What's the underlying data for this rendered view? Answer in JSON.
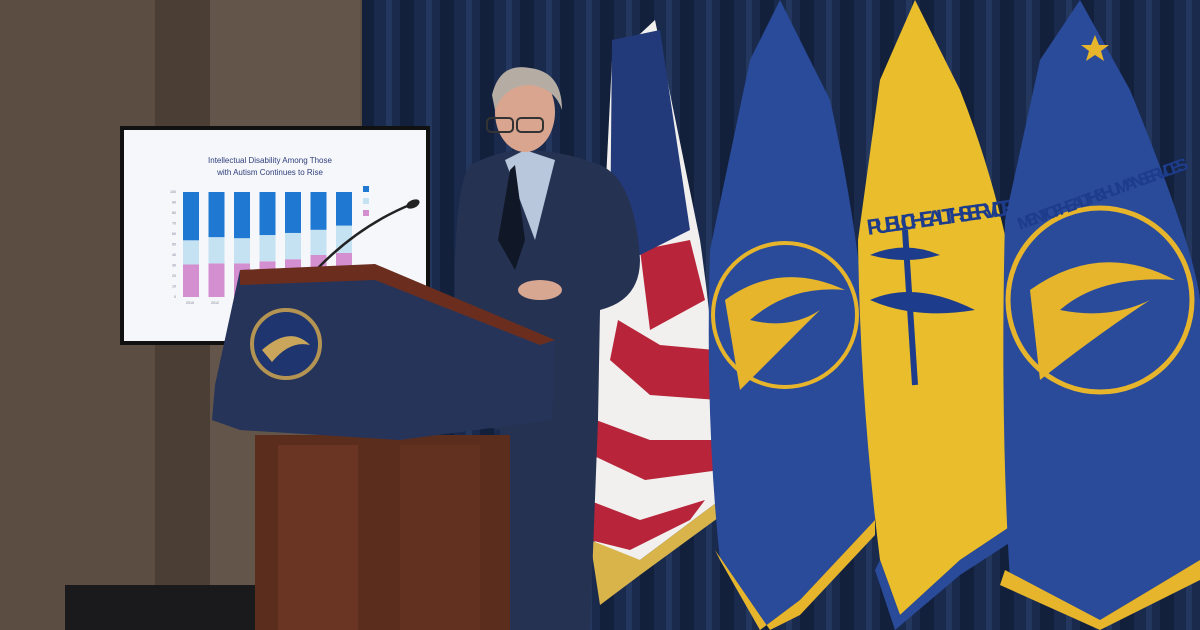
{
  "screen": {
    "title_line1": "Intellectual Disability Among Those",
    "title_line2": "with Autism Continues to Rise",
    "chart": {
      "type": "bar",
      "stacked": true,
      "x_tick_labels": [
        "2010",
        "2012"
      ],
      "ylim": [
        0,
        100
      ],
      "y_ticks": [
        0,
        10,
        20,
        30,
        40,
        50,
        60,
        70,
        80,
        90,
        100
      ],
      "series": [
        {
          "color": "#d48fd0",
          "values": [
            31,
            32,
            32,
            34,
            36,
            40,
            42
          ]
        },
        {
          "color": "#c5e2f2",
          "values": [
            23,
            25,
            24,
            25,
            25,
            24,
            26
          ]
        },
        {
          "color": "#1f78d1",
          "values": [
            46,
            43,
            44,
            41,
            39,
            36,
            32
          ]
        }
      ]
    }
  },
  "flags": {
    "phs_text": "PUBLIC HEALTH SERVICE",
    "hhs_text": "MENT OF HEALTH & HUMAN SERVICES"
  },
  "colors": {
    "wall": "#5b4d42",
    "curtain": "#1b2a4a",
    "podium_blue": "#26345a",
    "podium_wood": "#5a2d1c",
    "hhs_blue": "#2a4a9a",
    "phs_yellow": "#e9bd2c"
  }
}
